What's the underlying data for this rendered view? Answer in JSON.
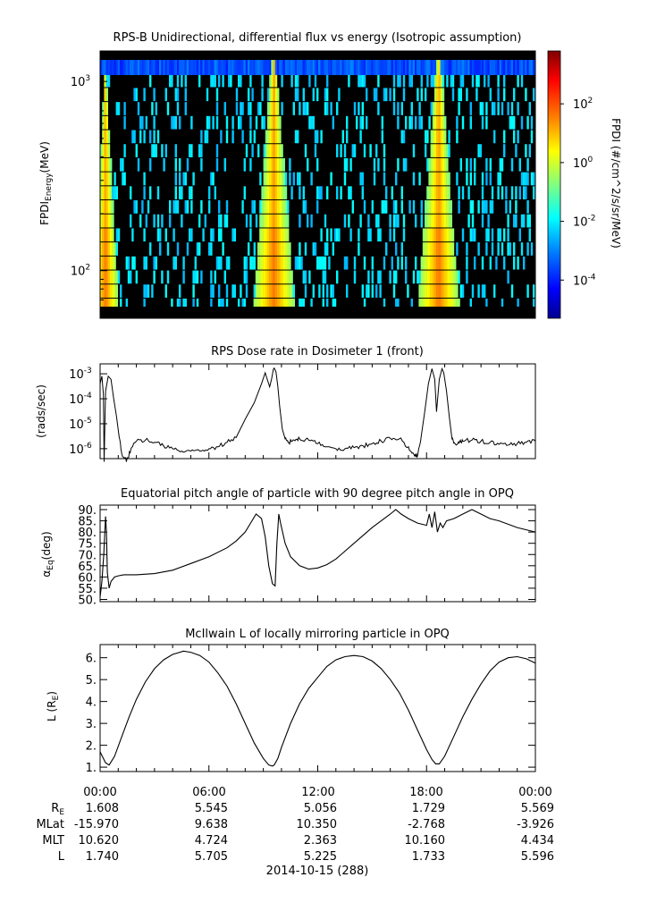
{
  "chart_data": [
    {
      "type": "heatmap",
      "title": "RPS-B  Unidirectional, differential flux vs energy (Isotropic assumption)",
      "ylabel_main": "FPDI",
      "ylabel_sub": "Energy",
      "ylabel_unit": "(MeV)",
      "yscale": "log",
      "ylim": [
        56,
        1450
      ],
      "yticks": [
        {
          "value": 100,
          "base": "10",
          "exp": "2"
        },
        {
          "value": 1000,
          "base": "10",
          "exp": "3"
        }
      ],
      "xlim": [
        0,
        24
      ],
      "colorbar": {
        "label": "FPDI (#/cm^2/s/sr/MeV)",
        "scale": "log",
        "range_exp": [
          -5.3,
          3.8
        ],
        "ticks": [
          {
            "base": "10",
            "exp": "2",
            "e": 2
          },
          {
            "base": "10",
            "exp": "0",
            "e": 0
          },
          {
            "base": "10",
            "exp": "-2",
            "e": -2
          },
          {
            "base": "10",
            "exp": "-4",
            "e": -4
          }
        ]
      },
      "colormap": [
        "#00008f",
        "#0000ff",
        "#0080ff",
        "#00ffff",
        "#80ff80",
        "#ffff00",
        "#ff8000",
        "#ff0000",
        "#800000"
      ],
      "belt_passes_hours": [
        0.3,
        9.6,
        18.7
      ]
    },
    {
      "type": "line",
      "title": "RPS  Dose rate in Dosimeter 1 (front)",
      "ylabel": "(rads/sec)",
      "yscale": "log",
      "ylim": [
        4e-07,
        0.0025
      ],
      "yticks": [
        {
          "value": 1e-06,
          "base": "10",
          "exp": "-6"
        },
        {
          "value": 1e-05,
          "base": "10",
          "exp": "-5"
        },
        {
          "value": 0.0001,
          "base": "10",
          "exp": "-4"
        },
        {
          "value": 0.001,
          "base": "10",
          "exp": "-3"
        }
      ],
      "xlim": [
        0,
        24
      ],
      "x": [
        0.0,
        0.1,
        0.18,
        0.22,
        0.3,
        0.45,
        0.6,
        0.75,
        0.9,
        1.05,
        1.2,
        1.45,
        1.7,
        2.0,
        2.5,
        3.0,
        3.5,
        4.0,
        4.5,
        5.0,
        5.5,
        6.0,
        6.5,
        7.0,
        7.5,
        8.0,
        8.5,
        8.9,
        9.1,
        9.25,
        9.35,
        9.45,
        9.55,
        9.6,
        9.7,
        9.8,
        9.9,
        10.05,
        10.2,
        10.4,
        10.7,
        11.0,
        11.5,
        12.0,
        12.5,
        13.0,
        13.5,
        14.0,
        14.5,
        15.0,
        15.5,
        16.0,
        16.5,
        17.0,
        17.3,
        17.5,
        17.7,
        17.9,
        18.1,
        18.3,
        18.45,
        18.55,
        18.7,
        18.85,
        18.95,
        19.1,
        19.25,
        19.4,
        19.6,
        19.8,
        20.0,
        20.5,
        21.0,
        21.5,
        22.0,
        22.5,
        23.0,
        23.5,
        24.0
      ],
      "y": [
        0.0004,
        0.0008,
        0.00015,
        3e-07,
        0.0002,
        0.0008,
        0.0006,
        0.0001,
        2e-05,
        3e-06,
        6e-07,
        3e-07,
        1e-06,
        2e-06,
        2.2e-06,
        1.8e-06,
        1.3e-06,
        1e-06,
        8e-07,
        8e-07,
        8e-07,
        1e-06,
        1.2e-06,
        1.8e-06,
        2.8e-06,
        1.5e-05,
        7e-05,
        0.0004,
        0.0011,
        0.0005,
        0.0003,
        0.0006,
        0.0015,
        0.0017,
        0.0012,
        0.0003,
        5e-05,
        6e-06,
        2.5e-06,
        1.8e-06,
        2.2e-06,
        2.5e-06,
        2.2e-06,
        1.6e-06,
        1.2e-06,
        1e-06,
        1e-06,
        1.1e-06,
        1.3e-06,
        1.6e-06,
        2e-06,
        2.6e-06,
        2.5e-06,
        1.2e-06,
        6e-07,
        5e-07,
        3e-06,
        3e-05,
        0.0004,
        0.0016,
        0.0006,
        3e-05,
        0.0006,
        0.0016,
        0.0011,
        0.0002,
        2e-05,
        2.5e-06,
        1.5e-06,
        1.7e-06,
        2e-06,
        2.2e-06,
        2e-06,
        1.8e-06,
        1.5e-06,
        1.4e-06,
        1.6e-06,
        1.8e-06,
        2e-06
      ]
    },
    {
      "type": "line",
      "title": "Equatorial pitch angle of particle with 90 degree pitch angle in OPQ",
      "ylabel_main": "α",
      "ylabel_sub": "Eq",
      "ylabel_unit": "(deg)",
      "ylim": [
        49,
        92
      ],
      "yticks": [
        "50.",
        "55.",
        "60.",
        "65.",
        "70.",
        "75.",
        "80.",
        "85.",
        "90."
      ],
      "xlim": [
        0,
        24
      ],
      "x": [
        0.0,
        0.1,
        0.2,
        0.3,
        0.35,
        0.4,
        0.5,
        0.6,
        0.8,
        1.0,
        1.3,
        1.6,
        2.0,
        3.0,
        4.0,
        5.0,
        6.0,
        7.0,
        7.5,
        8.0,
        8.3,
        8.6,
        8.9,
        9.1,
        9.3,
        9.5,
        9.65,
        9.75,
        9.85,
        9.95,
        10.2,
        10.5,
        11.0,
        11.5,
        12.0,
        12.5,
        13.0,
        14.0,
        15.0,
        16.0,
        16.3,
        16.6,
        17.0,
        17.5,
        18.0,
        18.15,
        18.3,
        18.45,
        18.6,
        18.75,
        18.9,
        19.1,
        19.5,
        20.0,
        20.5,
        21.0,
        21.5,
        22.0,
        23.0,
        24.0
      ],
      "y": [
        51,
        58,
        70,
        87,
        80,
        62,
        55,
        58,
        60,
        60.5,
        61,
        61,
        61,
        61.5,
        63,
        66,
        69,
        73,
        76,
        80,
        84,
        88,
        86,
        78,
        65,
        57,
        56,
        75,
        88,
        84,
        75,
        69,
        65,
        63.5,
        64,
        65.5,
        68,
        75,
        82,
        88,
        90,
        88,
        86,
        84,
        83,
        88,
        82,
        89,
        80,
        84,
        82,
        85,
        86,
        88,
        90,
        88,
        86,
        85,
        82,
        80
      ]
    },
    {
      "type": "line",
      "title": "McIlwain L of locally mirroring particle in OPQ",
      "ylabel_main": "L (R",
      "ylabel_sub": "E",
      "ylabel_unit": ")",
      "ylim": [
        0.8,
        6.6
      ],
      "yticks": [
        "1.",
        "2.",
        "3.",
        "4.",
        "5.",
        "6."
      ],
      "xlim": [
        0,
        24
      ],
      "x": [
        0.0,
        0.3,
        0.5,
        0.8,
        1.2,
        1.6,
        2.0,
        2.5,
        3.0,
        3.5,
        4.0,
        4.6,
        5.0,
        5.5,
        6.0,
        6.5,
        7.0,
        7.5,
        8.0,
        8.5,
        9.0,
        9.3,
        9.5,
        9.6,
        9.8,
        10.0,
        10.5,
        11.0,
        11.5,
        12.0,
        12.5,
        13.0,
        13.5,
        14.0,
        14.5,
        15.0,
        15.5,
        16.0,
        16.5,
        17.0,
        17.5,
        18.0,
        18.3,
        18.5,
        18.7,
        19.0,
        19.5,
        20.0,
        20.5,
        21.0,
        21.5,
        22.0,
        22.5,
        23.0,
        23.5,
        24.0
      ],
      "y": [
        1.7,
        1.2,
        1.1,
        1.5,
        2.4,
        3.3,
        4.1,
        4.9,
        5.5,
        5.9,
        6.15,
        6.3,
        6.25,
        6.1,
        5.8,
        5.3,
        4.7,
        3.9,
        3.0,
        2.1,
        1.4,
        1.1,
        1.05,
        1.1,
        1.4,
        1.9,
        3.0,
        3.9,
        4.6,
        5.1,
        5.6,
        5.9,
        6.05,
        6.1,
        6.05,
        5.85,
        5.5,
        5.0,
        4.4,
        3.6,
        2.7,
        1.8,
        1.35,
        1.15,
        1.15,
        1.5,
        2.4,
        3.3,
        4.1,
        4.8,
        5.4,
        5.8,
        6.0,
        6.05,
        5.95,
        5.75
      ]
    }
  ],
  "x_axis": {
    "tick_labels": [
      "00:00",
      "06:00",
      "12:00",
      "18:00",
      "00:00"
    ],
    "rows": [
      {
        "label_main": "R",
        "label_sub": "E",
        "values": [
          "1.608",
          "5.545",
          "5.056",
          "1.729",
          "5.569"
        ]
      },
      {
        "label_main": "MLat",
        "label_sub": "",
        "values": [
          "-15.970",
          "9.638",
          "10.350",
          "-2.768",
          "-3.926"
        ]
      },
      {
        "label_main": "MLT",
        "label_sub": "",
        "values": [
          "10.620",
          "4.724",
          "2.363",
          "10.160",
          "4.434"
        ]
      },
      {
        "label_main": "L",
        "label_sub": "",
        "values": [
          "1.740",
          "5.705",
          "5.225",
          "1.733",
          "5.596"
        ]
      }
    ],
    "date_label": "2014-10-15 (288)"
  }
}
